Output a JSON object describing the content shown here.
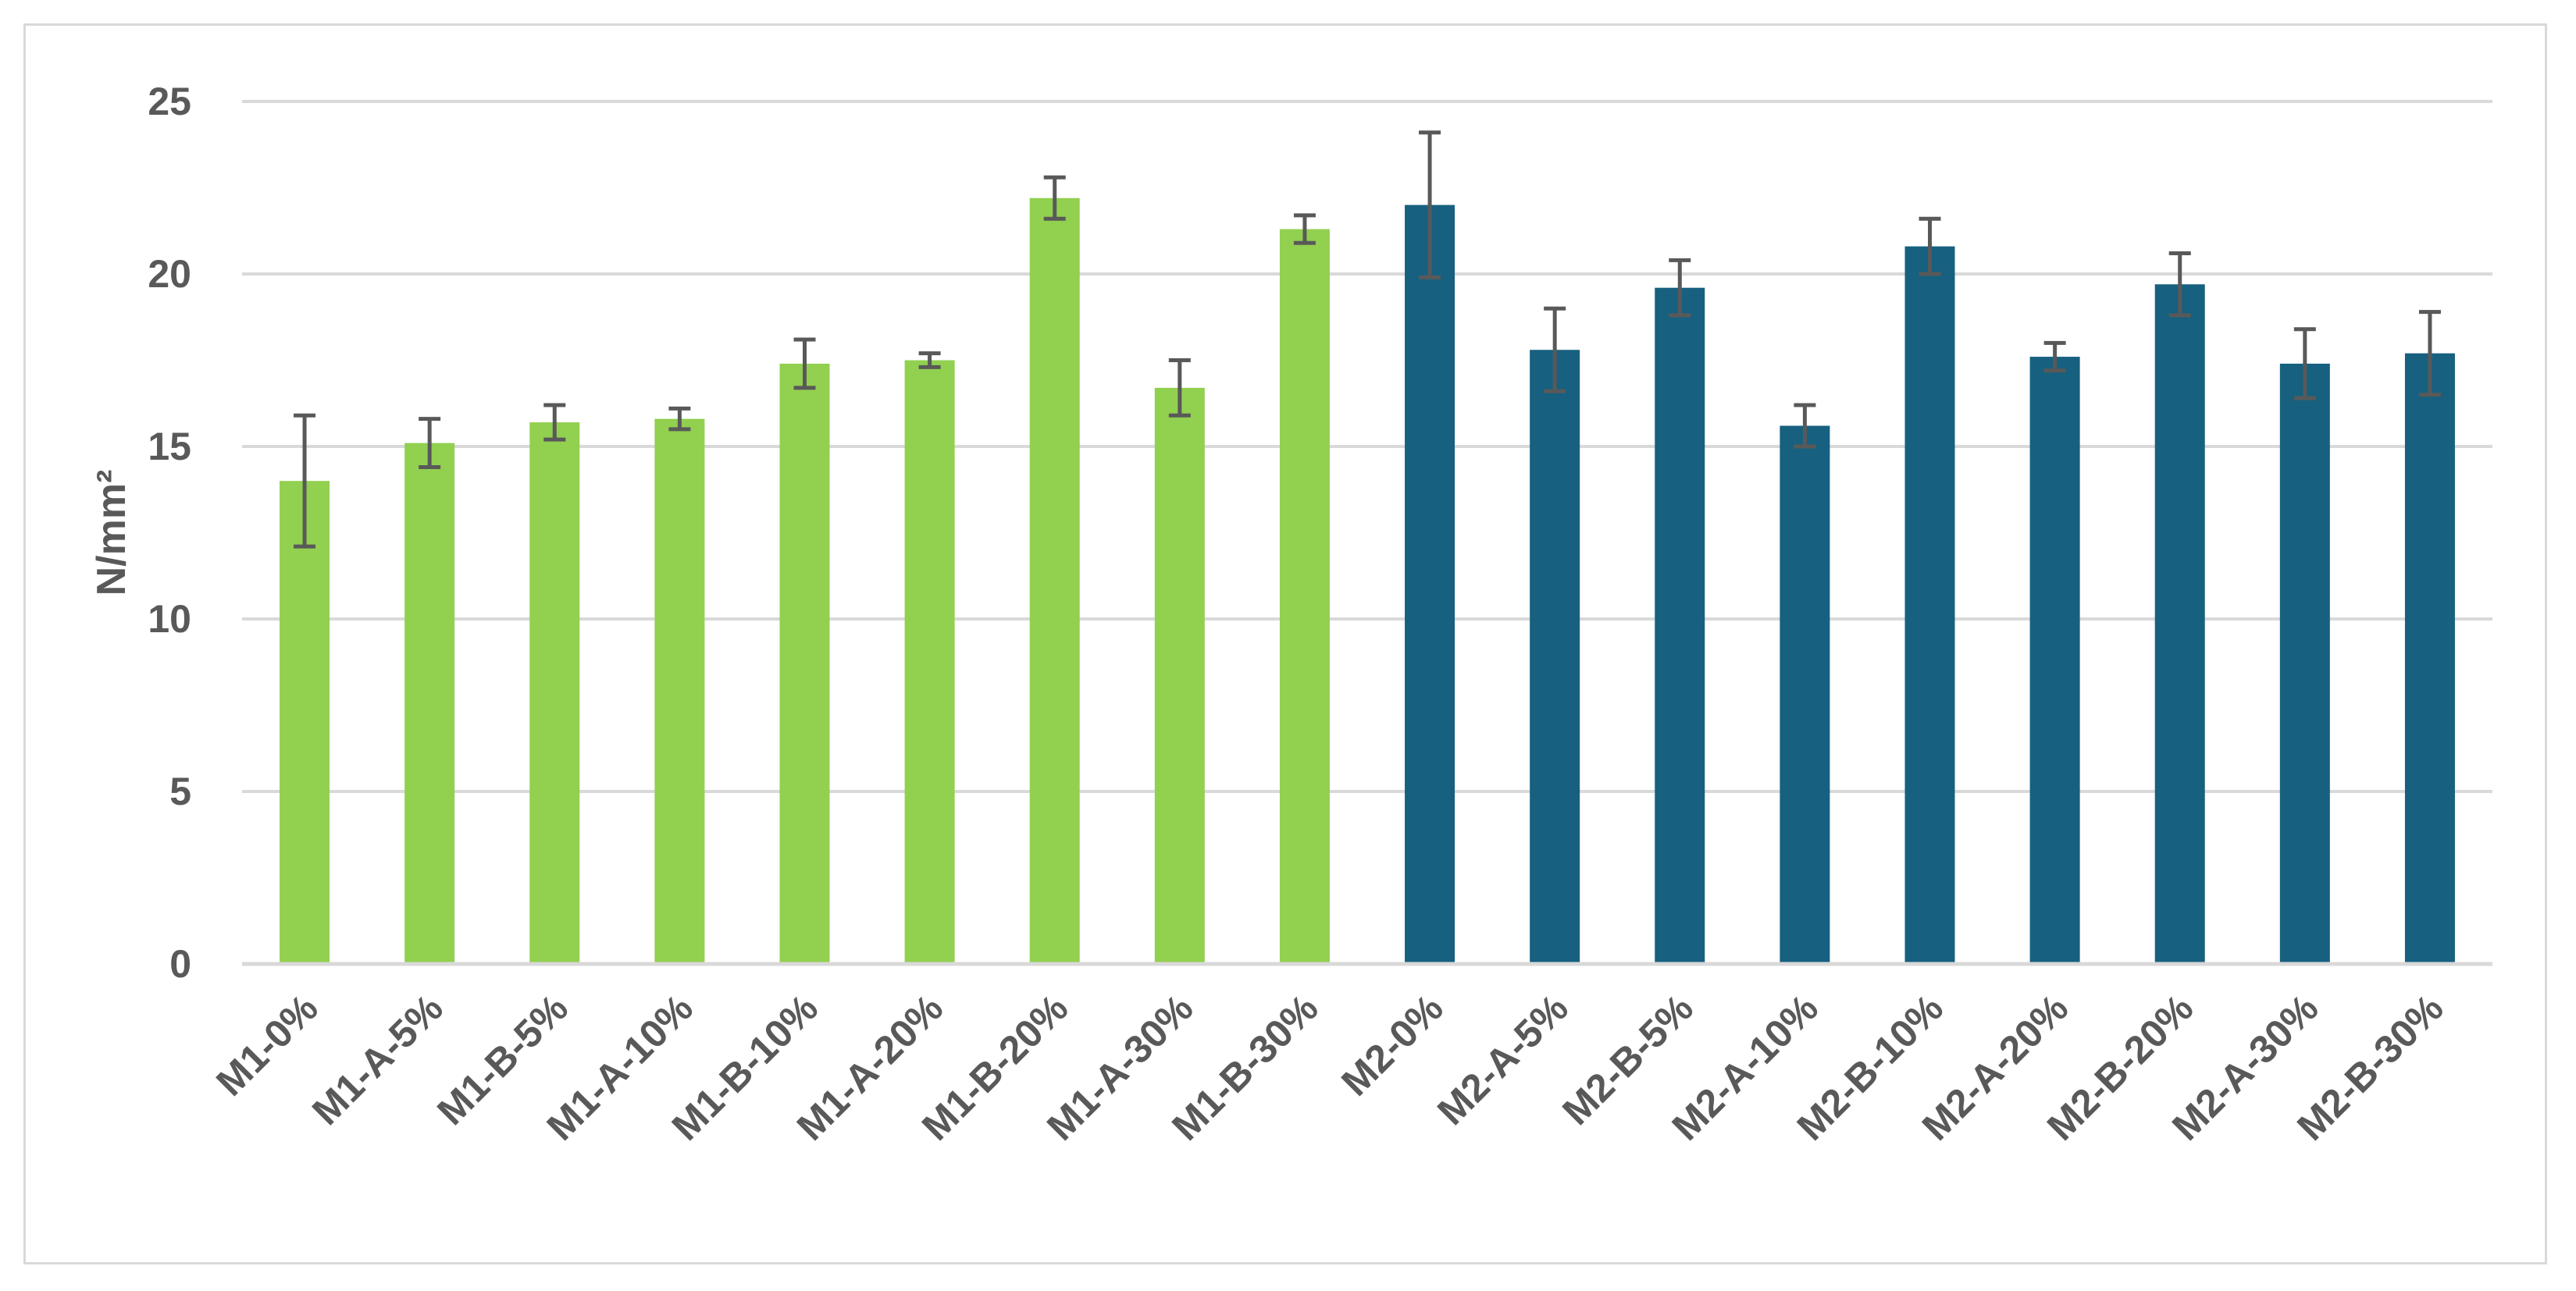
{
  "chart_data": {
    "type": "bar",
    "title": "",
    "xlabel": "",
    "ylabel": "N/mm²",
    "ylim": [
      0,
      25
    ],
    "yticks": [
      0,
      5,
      10,
      15,
      20,
      25
    ],
    "grid": true,
    "legend": "none",
    "categories": [
      "M1-0%",
      "M1-A-5%",
      "M1-B-5%",
      "M1-A-10%",
      "M1-B-10%",
      "M1-A-20%",
      "M1-B-20%",
      "M1-A-30%",
      "M1-B-30%",
      "M2-0%",
      "M2-A-5%",
      "M2-B-5%",
      "M2-A-10%",
      "M2-B-10%",
      "M2-A-20%",
      "M2-B-20%",
      "M2-A-30%",
      "M2-B-30%"
    ],
    "values": [
      14.0,
      15.1,
      15.7,
      15.8,
      17.4,
      17.5,
      22.2,
      16.7,
      21.3,
      22.0,
      17.8,
      19.6,
      15.6,
      20.8,
      17.6,
      19.7,
      17.4,
      17.7
    ],
    "error": [
      1.9,
      0.7,
      0.5,
      0.3,
      0.7,
      0.2,
      0.6,
      0.8,
      0.4,
      2.1,
      1.2,
      0.8,
      0.6,
      0.8,
      0.4,
      0.9,
      1.0,
      1.2
    ],
    "colors": {
      "M1": "#92d050",
      "M2": "#17607f",
      "error_bar": "#595959",
      "grid": "#d9d9d9"
    }
  }
}
